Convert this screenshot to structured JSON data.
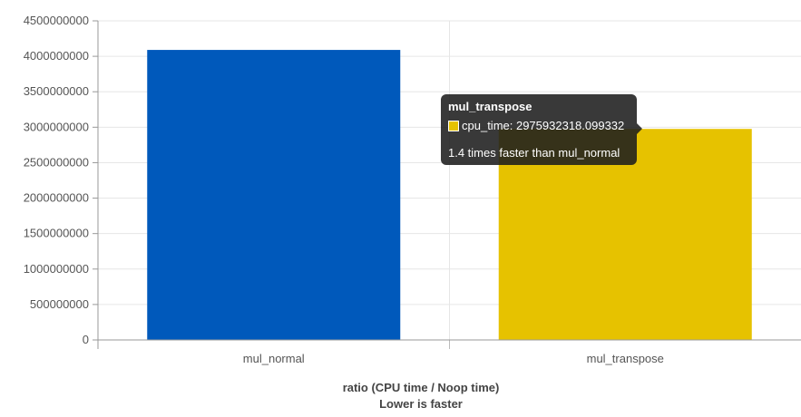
{
  "chart_data": {
    "type": "bar",
    "categories": [
      "mul_normal",
      "mul_transpose"
    ],
    "values": [
      4090000000,
      2975932318.099332
    ],
    "colors": [
      "#0059bb",
      "#e6c200"
    ],
    "y_ticks": [
      "0",
      "500000000",
      "1000000000",
      "1500000000",
      "2000000000",
      "2500000000",
      "3000000000",
      "3500000000",
      "4000000000",
      "4500000000"
    ],
    "ylim": [
      0,
      4500000000
    ],
    "xlabel": "ratio (CPU time / Noop time)",
    "xlabel_sub": "Lower is faster",
    "grid": true
  },
  "tooltip": {
    "title": "mul_transpose",
    "series_label": "cpu_time: 2975932318.099332",
    "note": "1.4 times faster than mul_normal",
    "swatch_color": "#e6c200"
  }
}
